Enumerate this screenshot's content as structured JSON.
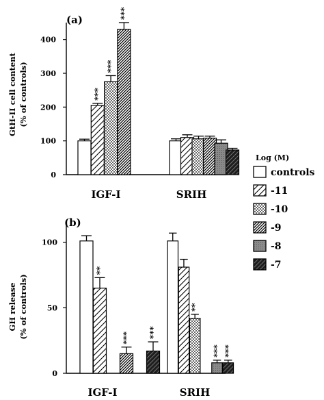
{
  "chart_data": [
    {
      "type": "bar",
      "panel_label": "(a)",
      "ylabel": "GtH-II cell content",
      "ylabel_sub": "(% of controls)",
      "ylim": [
        0,
        450
      ],
      "yticks": [
        "0",
        "100",
        "200",
        "300",
        "400"
      ],
      "categories": [
        "IGF-I",
        "SRIH"
      ],
      "series": [
        {
          "name": "controls",
          "values": [
            100,
            100
          ],
          "errors": [
            5,
            6
          ]
        },
        {
          "name": "-11",
          "values": [
            205,
            110
          ],
          "errors": [
            6,
            8
          ]
        },
        {
          "name": "-10",
          "values": [
            275,
            106
          ],
          "errors": [
            18,
            8
          ]
        },
        {
          "name": "-9",
          "values": [
            430,
            108
          ],
          "errors": [
            20,
            6
          ]
        },
        {
          "name": "-8",
          "values": [
            null,
            93
          ],
          "errors": [
            null,
            10
          ]
        },
        {
          "name": "-7",
          "values": [
            null,
            73
          ],
          "errors": [
            null,
            5
          ]
        }
      ],
      "significance": [
        [
          "",
          "***",
          "***",
          "***",
          "",
          ""
        ],
        [
          "",
          "",
          "",
          "",
          "",
          ""
        ]
      ]
    },
    {
      "type": "bar",
      "panel_label": "(b)",
      "ylabel": "GH release",
      "ylabel_sub": "(% of controls)",
      "ylim": [
        0,
        115
      ],
      "yticks": [
        "0",
        "50",
        "100"
      ],
      "categories": [
        "IGF-I",
        "SRIH"
      ],
      "series": [
        {
          "name": "controls",
          "values": [
            101,
            101
          ],
          "errors": [
            4,
            6
          ]
        },
        {
          "name": "-11",
          "values": [
            65,
            81
          ],
          "errors": [
            8,
            6
          ]
        },
        {
          "name": "-10",
          "values": [
            null,
            42
          ],
          "errors": [
            null,
            3
          ]
        },
        {
          "name": "-9",
          "values": [
            15,
            null
          ],
          "errors": [
            5,
            null
          ]
        },
        {
          "name": "-8",
          "values": [
            null,
            8
          ],
          "errors": [
            null,
            2
          ]
        },
        {
          "name": "-7",
          "values": [
            17,
            8
          ],
          "errors": [
            7,
            2
          ]
        }
      ],
      "significance": [
        [
          "",
          "**",
          "",
          "***",
          "",
          "***"
        ],
        [
          "",
          "",
          "**",
          "",
          "***",
          "***"
        ]
      ]
    }
  ],
  "legend": {
    "title": "Log (M)",
    "entries": [
      "controls",
      "-11",
      "-10",
      "-9",
      "-8",
      "-7"
    ],
    "placement": "right"
  }
}
